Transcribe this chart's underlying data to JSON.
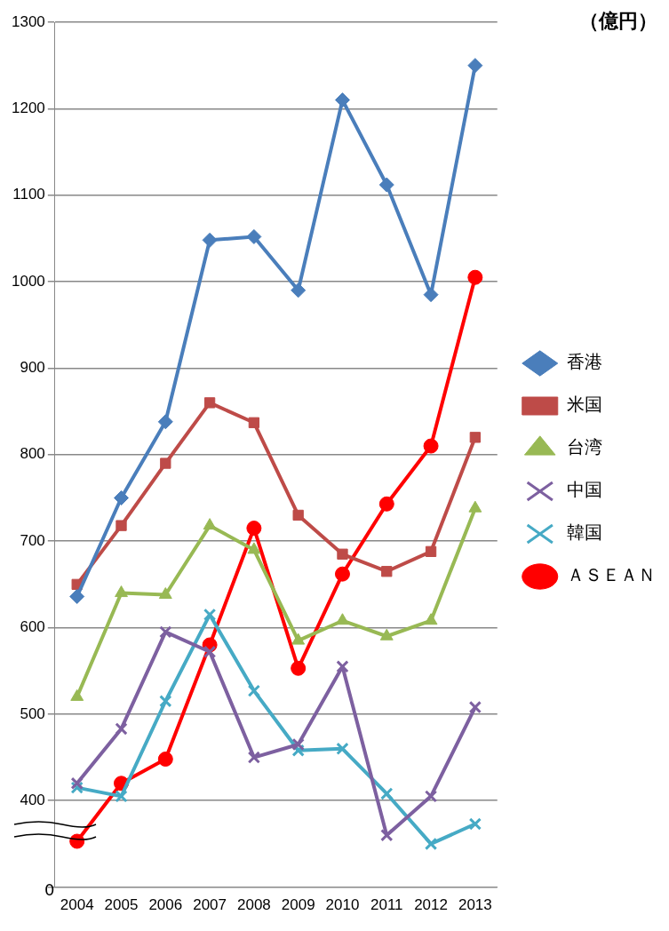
{
  "chart_data": {
    "type": "line",
    "categories": [
      "2004",
      "2005",
      "2006",
      "2007",
      "2008",
      "2009",
      "2010",
      "2011",
      "2012",
      "2013"
    ],
    "series": [
      {
        "name": "香港",
        "color": "#4a7ebb",
        "marker": "diamond",
        "values": [
          636,
          750,
          838,
          1048,
          1052,
          990,
          1210,
          1112,
          985,
          1250
        ]
      },
      {
        "name": "米国",
        "color": "#be4b48",
        "marker": "square",
        "values": [
          650,
          718,
          790,
          860,
          837,
          730,
          685,
          665,
          688,
          820
        ]
      },
      {
        "name": "台湾",
        "color": "#98b954",
        "marker": "triangle",
        "values": [
          520,
          640,
          638,
          718,
          690,
          585,
          608,
          590,
          608,
          738
        ]
      },
      {
        "name": "中国",
        "color": "#7d60a0",
        "marker": "cross",
        "values": [
          420,
          483,
          595,
          572,
          450,
          465,
          555,
          360,
          405,
          508
        ]
      },
      {
        "name": "韓国",
        "color": "#46aac5",
        "marker": "cross",
        "values": [
          415,
          405,
          515,
          615,
          527,
          458,
          460,
          408,
          350,
          373
        ]
      },
      {
        "name": "ＡＳＥＡＮ",
        "color": "#ff0000",
        "marker": "circle",
        "values": [
          353,
          420,
          448,
          580,
          715,
          553,
          662,
          743,
          810,
          1005
        ]
      }
    ],
    "ylim": [
      300,
      1300
    ],
    "yticks": [
      {
        "value": 300,
        "label": null
      },
      400,
      500,
      600,
      700,
      800,
      900,
      1000,
      1100,
      1200,
      1300
    ],
    "grid": "y",
    "legend": "right",
    "annotations": [
      "（億円）",
      "0"
    ]
  }
}
